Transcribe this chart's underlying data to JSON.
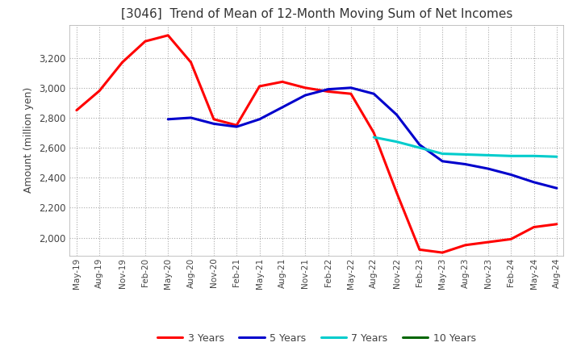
{
  "title": "[3046]  Trend of Mean of 12-Month Moving Sum of Net Incomes",
  "ylabel": "Amount (million yen)",
  "ylim": [
    1880,
    3420
  ],
  "yticks": [
    2000,
    2200,
    2400,
    2600,
    2800,
    3000,
    3200
  ],
  "background_color": "#ffffff",
  "legend_labels": [
    "3 Years",
    "5 Years",
    "7 Years",
    "10 Years"
  ],
  "legend_colors": [
    "#ff0000",
    "#0000cc",
    "#00cccc",
    "#006600"
  ],
  "x_labels": [
    "May-19",
    "Aug-19",
    "Nov-19",
    "Feb-20",
    "May-20",
    "Aug-20",
    "Nov-20",
    "Feb-21",
    "May-21",
    "Aug-21",
    "Nov-21",
    "Feb-22",
    "May-22",
    "Aug-22",
    "Nov-22",
    "Feb-23",
    "May-23",
    "Aug-23",
    "Nov-23",
    "Feb-24",
    "May-24",
    "Aug-24"
  ],
  "series": {
    "3yr": [
      2850,
      2980,
      3170,
      3310,
      3350,
      3170,
      2790,
      2750,
      3010,
      3040,
      3000,
      2975,
      2960,
      2700,
      2300,
      1920,
      1900,
      1950,
      1970,
      1990,
      2070,
      2090
    ],
    "5yr": [
      null,
      null,
      null,
      null,
      2790,
      2800,
      2760,
      2740,
      2790,
      2870,
      2950,
      2990,
      3000,
      2960,
      2820,
      2620,
      2510,
      2490,
      2460,
      2420,
      2370,
      2330
    ],
    "7yr": [
      null,
      null,
      null,
      null,
      null,
      null,
      null,
      null,
      null,
      null,
      null,
      null,
      null,
      2670,
      2640,
      2600,
      2560,
      2555,
      2550,
      2545,
      2545,
      2540
    ],
    "10yr": [
      null,
      null,
      null,
      null,
      null,
      null,
      null,
      null,
      null,
      null,
      null,
      null,
      null,
      null,
      null,
      null,
      null,
      null,
      null,
      null,
      null,
      null
    ]
  }
}
